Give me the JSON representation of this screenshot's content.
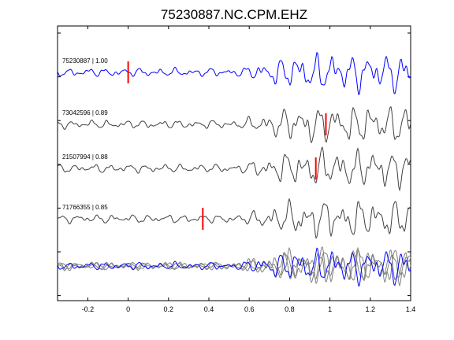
{
  "chart_data": {
    "type": "line",
    "title": "75230887.NC.CPM.EHZ",
    "xlabel": "",
    "ylabel": "",
    "xlim": [
      -0.35,
      1.4
    ],
    "xticks": [
      -0.2,
      0,
      0.2,
      0.4,
      0.6,
      0.8,
      1,
      1.2,
      1.4
    ],
    "xtick_labels": [
      "-0.2",
      "0",
      "0.2",
      "0.4",
      "0.6",
      "0.8",
      "1",
      "1.2",
      "1.4"
    ],
    "grid": false,
    "colors": {
      "reference": "#0000ff",
      "trace": "#404040",
      "stack": "#808080",
      "pick": "#ff0000"
    },
    "series": [
      {
        "label": "75230887 | 1.00",
        "pick_time": 0.0,
        "seed": 1,
        "reference": true
      },
      {
        "label": "73042596 | 0.89",
        "pick_time": 0.98,
        "seed": 2
      },
      {
        "label": "21507994 | 0.88",
        "pick_time": 0.93,
        "seed": 3
      },
      {
        "label": "71766355 | 0.85",
        "pick_time": 0.37,
        "seed": 4
      }
    ],
    "stack_row": true
  }
}
